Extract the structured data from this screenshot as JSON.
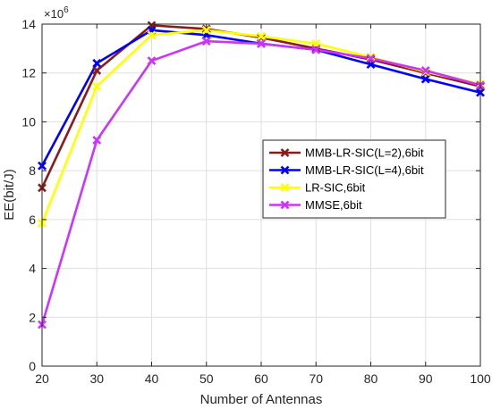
{
  "chart_data": {
    "type": "line",
    "title": "",
    "xlabel": "Number of Antennas",
    "ylabel": "EE(bit/J)",
    "xlim": [
      20,
      100
    ],
    "ylim": [
      0,
      14
    ],
    "x": [
      20,
      30,
      40,
      50,
      60,
      70,
      80,
      90,
      100
    ],
    "xticks": [
      "20",
      "30",
      "40",
      "50",
      "60",
      "70",
      "80",
      "90",
      "100"
    ],
    "yticks": [
      "0",
      "2",
      "4",
      "6",
      "8",
      "10",
      "12",
      "14"
    ],
    "y_multiplier": {
      "base": "×10",
      "exponent": "6"
    },
    "grid": true,
    "legend_position": "right",
    "series": [
      {
        "name": "MMB-LR-SIC(L=2),6bit",
        "color": "#8B1A1A",
        "values": [
          7.3,
          12.1,
          13.95,
          13.8,
          13.45,
          13.0,
          12.55,
          12.0,
          11.45
        ]
      },
      {
        "name": "MMB-LR-SIC(L=4),6bit",
        "color": "#0000FF",
        "values": [
          8.2,
          12.4,
          13.75,
          13.55,
          13.2,
          12.95,
          12.35,
          11.75,
          11.2
        ]
      },
      {
        "name": "LR-SIC,6bit",
        "color": "#FFFF00",
        "values": [
          5.85,
          11.45,
          13.55,
          13.75,
          13.5,
          13.2,
          12.65,
          12.05,
          11.55
        ]
      },
      {
        "name": "MMSE,6bit",
        "color": "#CC33FF",
        "values": [
          1.7,
          9.25,
          12.5,
          13.3,
          13.2,
          12.95,
          12.6,
          12.1,
          11.5
        ]
      }
    ]
  }
}
